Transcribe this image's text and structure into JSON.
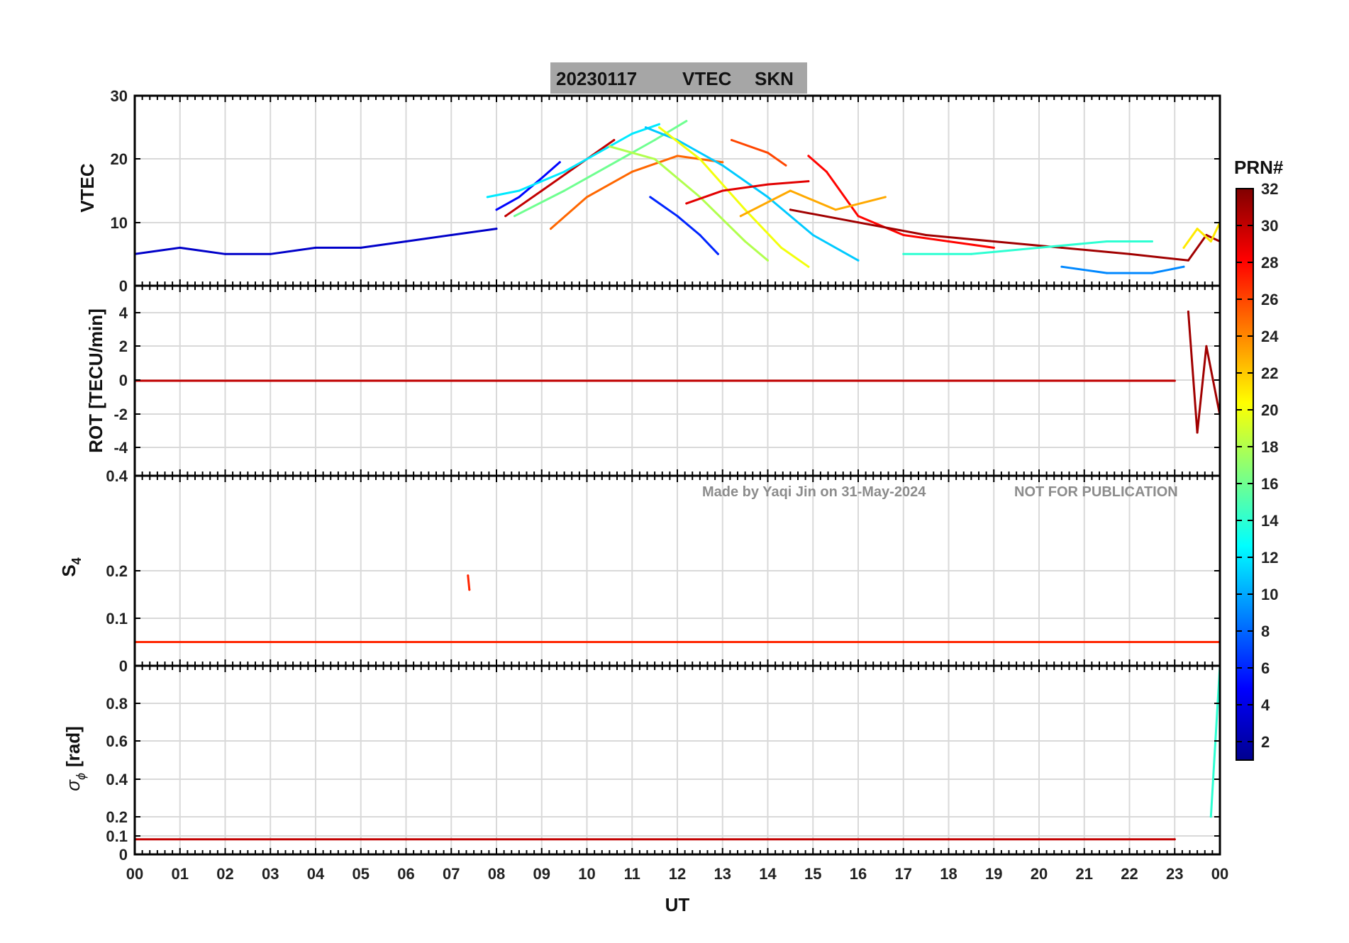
{
  "chart_data": {
    "type": "line",
    "title_date": "20230117",
    "title_param": "VTEC",
    "title_station": "SKN",
    "xlabel": "UT",
    "x_ticks": [
      "00",
      "01",
      "02",
      "03",
      "04",
      "05",
      "06",
      "07",
      "08",
      "09",
      "10",
      "11",
      "12",
      "13",
      "14",
      "15",
      "16",
      "17",
      "18",
      "19",
      "20",
      "21",
      "22",
      "23",
      "00"
    ],
    "xlim": [
      0,
      24
    ],
    "watermark_author": "Made by Yaqi Jin on 31-May-2024",
    "watermark_notice": "NOT FOR PUBLICATION",
    "colorbar": {
      "label": "PRN#",
      "range": [
        1,
        32
      ],
      "colormap": "jet",
      "ticks": [
        "2",
        "4",
        "6",
        "8",
        "10",
        "12",
        "14",
        "16",
        "18",
        "20",
        "22",
        "24",
        "26",
        "28",
        "30",
        "32"
      ]
    },
    "panels": [
      {
        "id": "vtec",
        "ylabel": "VTEC",
        "ylim": [
          0,
          30
        ],
        "y_ticks": [
          "0",
          "10",
          "20",
          "30"
        ],
        "series": [
          {
            "prn": 3,
            "x": [
              0,
              1,
              2,
              3,
              4,
              5,
              6,
              7,
              8
            ],
            "y": [
              5,
              6,
              5,
              5,
              6,
              6,
              7,
              8,
              9
            ]
          },
          {
            "prn": 5,
            "x": [
              8,
              8.5,
              9,
              9.4
            ],
            "y": [
              12,
              14,
              17,
              19.5
            ]
          },
          {
            "prn": 30,
            "x": [
              8.2,
              9,
              10,
              10.6
            ],
            "y": [
              11,
              15,
              20,
              23
            ]
          },
          {
            "prn": 12,
            "x": [
              7.8,
              8.5,
              9.5,
              10.5,
              11,
              11.6
            ],
            "y": [
              14,
              15,
              18,
              22,
              24,
              25.5
            ]
          },
          {
            "prn": 16,
            "x": [
              8.4,
              9.5,
              10.5,
              11.5,
              12.2
            ],
            "y": [
              11,
              15,
              19,
              23,
              26
            ]
          },
          {
            "prn": 25,
            "x": [
              9.2,
              10,
              11,
              12,
              13
            ],
            "y": [
              9,
              14,
              18,
              20.5,
              19.5
            ]
          },
          {
            "prn": 11,
            "x": [
              11.3,
              12,
              13,
              14,
              15,
              16
            ],
            "y": [
              25,
              23,
              19,
              14,
              8,
              4
            ]
          },
          {
            "prn": 20,
            "x": [
              11.6,
              12.5,
              13.5,
              14.3,
              14.9
            ],
            "y": [
              25,
              20,
              12,
              6,
              3
            ]
          },
          {
            "prn": 18,
            "x": [
              10.5,
              11.5,
              12.5,
              13.5,
              14
            ],
            "y": [
              22,
              20,
              14,
              7,
              4
            ]
          },
          {
            "prn": 6,
            "x": [
              11.4,
              12,
              12.5,
              12.9
            ],
            "y": [
              14,
              11,
              8,
              5
            ]
          },
          {
            "prn": 26,
            "x": [
              13.2,
              14,
              14.4
            ],
            "y": [
              23,
              21,
              19
            ]
          },
          {
            "prn": 29,
            "x": [
              12.2,
              13,
              14,
              14.9
            ],
            "y": [
              13,
              15,
              16,
              16.5
            ]
          },
          {
            "prn": 28,
            "x": [
              14.9,
              15.3,
              16,
              17,
              18,
              19
            ],
            "y": [
              20.5,
              18,
              11,
              8,
              7,
              6
            ]
          },
          {
            "prn": 23,
            "x": [
              13.4,
              14.5,
              15.5,
              16.6
            ],
            "y": [
              11,
              15,
              12,
              14
            ]
          },
          {
            "prn": 31,
            "x": [
              14.5,
              16,
              17.5,
              19,
              20.5,
              22,
              23.3,
              23.7,
              24
            ],
            "y": [
              12,
              10,
              8,
              7,
              6,
              5,
              4,
              8,
              7
            ]
          },
          {
            "prn": 14,
            "x": [
              17,
              18.5,
              20,
              21.5,
              22.5
            ],
            "y": [
              5,
              5,
              6,
              7,
              7
            ]
          },
          {
            "prn": 9,
            "x": [
              20.5,
              21.5,
              22.5,
              23.2
            ],
            "y": [
              3,
              2,
              2,
              3
            ]
          },
          {
            "prn": 21,
            "x": [
              23.2,
              23.5,
              23.8,
              24
            ],
            "y": [
              6,
              9,
              7,
              10
            ]
          }
        ]
      },
      {
        "id": "rot",
        "ylabel": "ROT [TECU/min]",
        "ylim": [
          -5.5,
          5.5
        ],
        "y_ticks": [
          "-4",
          "-2",
          "0",
          "2",
          "4"
        ],
        "series": [
          {
            "prn": 30,
            "x": [
              0,
              4,
              8,
              12,
              16,
              20,
              23
            ],
            "y": [
              0,
              0,
              0,
              0,
              0,
              0,
              0
            ]
          },
          {
            "prn": 31,
            "x": [
              23.3,
              23.5,
              23.7,
              24
            ],
            "y": [
              4,
              -3,
              2,
              -2
            ]
          }
        ]
      },
      {
        "id": "s4",
        "ylabel_main": "S",
        "ylabel_sub": "4",
        "ylim": [
          0,
          0.4
        ],
        "y_ticks": [
          "0",
          "0.1",
          "0.2",
          "0.4"
        ],
        "series": [
          {
            "prn": 27,
            "x": [
              0,
              6,
              12,
              18,
              24
            ],
            "y": [
              0.05,
              0.05,
              0.05,
              0.05,
              0.05
            ]
          },
          {
            "prn": 27,
            "x": [
              7.37,
              7.4
            ],
            "y": [
              0.19,
              0.16
            ]
          }
        ]
      },
      {
        "id": "sigma",
        "ylabel_main": "σ",
        "ylabel_sub": "ϕ",
        "ylabel_unit": "[rad]",
        "ylim": [
          0,
          1
        ],
        "y_ticks": [
          "0",
          "0.1",
          "0.2",
          "0.4",
          "0.6",
          "0.8"
        ],
        "series": [
          {
            "prn": 30,
            "x": [
              0,
              6,
              12,
              18,
              23
            ],
            "y": [
              0.08,
              0.08,
              0.08,
              0.08,
              0.08
            ]
          },
          {
            "prn": 14,
            "x": [
              23.8,
              24
            ],
            "y": [
              0.2,
              1.0
            ]
          }
        ]
      }
    ]
  }
}
